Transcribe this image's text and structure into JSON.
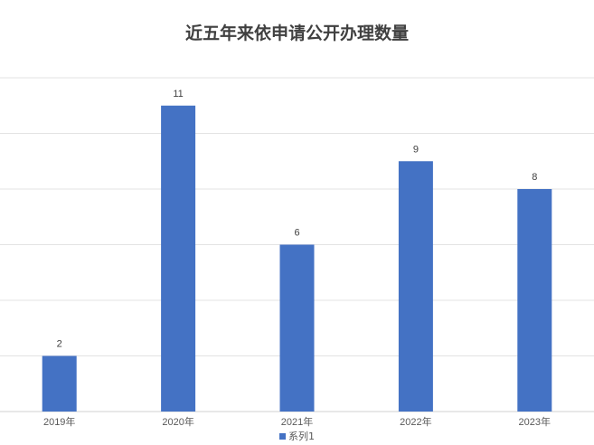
{
  "chart_data": {
    "type": "bar",
    "title": "近五年来依申请公开办理数量",
    "categories": [
      "2019年",
      "2020年",
      "2021年",
      "2022年",
      "2023年"
    ],
    "series": [
      {
        "name": "系列1",
        "values": [
          2,
          11,
          6,
          9,
          8
        ],
        "color": "#4472c4"
      }
    ],
    "ylim": [
      0,
      12
    ],
    "ytick_step": 2,
    "grid": true,
    "data_labels": true,
    "legend_position": "bottom"
  }
}
